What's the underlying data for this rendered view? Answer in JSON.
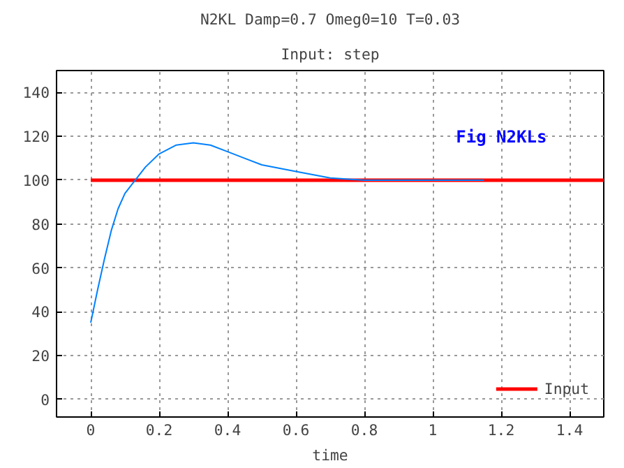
{
  "chart_data": {
    "type": "line",
    "title": "N2KL Damp=0.7 Omeg0=10 T=0.03",
    "subtitle": "Input: step",
    "xlabel": "time",
    "xlim": [
      -0.1,
      1.5
    ],
    "xticks": [
      0,
      0.2,
      0.4,
      0.6,
      0.8,
      1,
      1.2,
      1.4
    ],
    "ylim": [
      -8,
      150
    ],
    "yticks": [
      0,
      20,
      40,
      60,
      80,
      100,
      120,
      140
    ],
    "grid": true,
    "legend": "bottom right",
    "line_style": "solid",
    "marker": "none",
    "annotations": [
      "Fig N2KLs"
    ],
    "series": [
      {
        "color": "#0080ff",
        "x": [
          0,
          0.02,
          0.04,
          0.06,
          0.08,
          0.1,
          0.13,
          0.16,
          0.2,
          0.25,
          0.3,
          0.35,
          0.4,
          0.45,
          0.5,
          0.6,
          0.7,
          0.8,
          0.9,
          1.0,
          1.15
        ],
        "values": [
          35,
          50,
          64,
          77,
          87,
          94,
          100,
          106,
          112,
          116,
          117,
          116,
          113,
          110,
          107,
          104,
          101,
          100,
          100,
          100,
          100
        ]
      },
      {
        "name": "Input",
        "color": "#ff0000",
        "x": [
          0,
          1.5
        ],
        "values": [
          100,
          100
        ]
      }
    ]
  }
}
